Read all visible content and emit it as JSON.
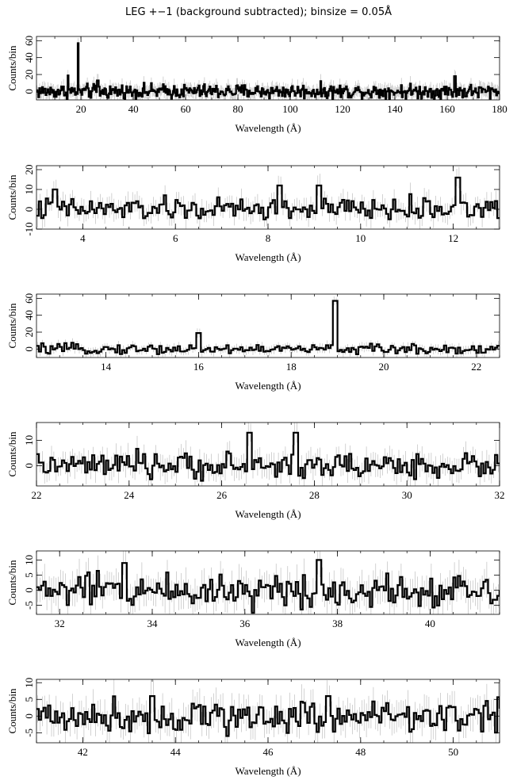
{
  "title": "LEG +−1 (background subtracted); binsize = 0.05Å",
  "chart_data": [
    {
      "type": "line",
      "xlabel": "Wavelength (Å)",
      "ylabel": "Counts/bin",
      "xlim": [
        3,
        180
      ],
      "ylim": [
        -10,
        65
      ],
      "xticks": [
        20,
        40,
        60,
        80,
        100,
        120,
        140,
        160,
        180
      ],
      "yticks": [
        0,
        20,
        40,
        60
      ],
      "noise_amplitude": 6,
      "peaks": [
        {
          "x": 19.0,
          "y": 57
        },
        {
          "x": 15.0,
          "y": 19
        },
        {
          "x": 26.5,
          "y": 13
        },
        {
          "x": 163.0,
          "y": 18
        }
      ]
    },
    {
      "type": "line",
      "xlabel": "Wavelength (Å)",
      "ylabel": "Counts/bin",
      "xlim": [
        3,
        13
      ],
      "ylim": [
        -10,
        22
      ],
      "xticks": [
        4,
        6,
        8,
        10,
        12
      ],
      "yticks": [
        -10,
        0,
        10,
        20
      ],
      "noise_amplitude": 4,
      "peaks": [
        {
          "x": 3.4,
          "y": 10
        },
        {
          "x": 8.25,
          "y": 12
        },
        {
          "x": 9.1,
          "y": 12
        },
        {
          "x": 12.1,
          "y": 16
        }
      ]
    },
    {
      "type": "line",
      "xlabel": "Wavelength (Å)",
      "ylabel": "Counts/bin",
      "xlim": [
        12.5,
        22.5
      ],
      "ylim": [
        -10,
        65
      ],
      "xticks": [
        14,
        16,
        18,
        20,
        22
      ],
      "yticks": [
        0,
        20,
        40,
        60
      ],
      "noise_amplitude": 4,
      "peaks": [
        {
          "x": 16.0,
          "y": 19
        },
        {
          "x": 18.95,
          "y": 57
        }
      ]
    },
    {
      "type": "line",
      "xlabel": "Wavelength (Å)",
      "ylabel": "Counts/bin",
      "xlim": [
        22,
        32
      ],
      "ylim": [
        -8,
        17
      ],
      "xticks": [
        22,
        24,
        26,
        28,
        30,
        32
      ],
      "yticks": [
        0,
        10
      ],
      "noise_amplitude": 3.5,
      "peaks": [
        {
          "x": 26.6,
          "y": 13
        },
        {
          "x": 27.6,
          "y": 13
        }
      ]
    },
    {
      "type": "line",
      "xlabel": "Wavelength (Å)",
      "ylabel": "Counts/bin",
      "xlim": [
        31.5,
        41.5
      ],
      "ylim": [
        -8,
        13
      ],
      "xticks": [
        32,
        34,
        36,
        38,
        40
      ],
      "yticks": [
        -5,
        0,
        5,
        10
      ],
      "noise_amplitude": 4,
      "peaks": [
        {
          "x": 37.6,
          "y": 10
        },
        {
          "x": 33.4,
          "y": 9
        }
      ]
    },
    {
      "type": "line",
      "xlabel": "Wavelength (Å)",
      "ylabel": "Counts/bin",
      "xlim": [
        41,
        51
      ],
      "ylim": [
        -8,
        11
      ],
      "xticks": [
        42,
        44,
        46,
        48,
        50
      ],
      "yticks": [
        -5,
        0,
        5,
        10
      ],
      "noise_amplitude": 3.5,
      "peaks": [
        {
          "x": 43.5,
          "y": 6
        },
        {
          "x": 47.3,
          "y": 6
        }
      ]
    }
  ]
}
